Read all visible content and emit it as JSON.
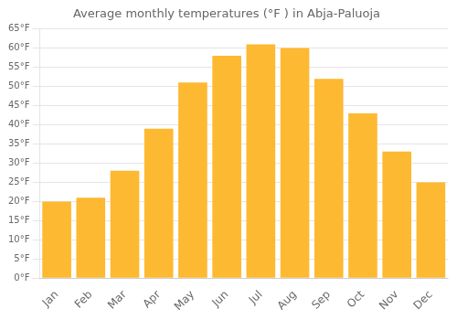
{
  "chart_data": {
    "type": "bar",
    "title": "Average monthly temperatures (°F ) in Abja-Paluoja",
    "categories": [
      "Jan",
      "Feb",
      "Mar",
      "Apr",
      "May",
      "Jun",
      "Jul",
      "Aug",
      "Sep",
      "Oct",
      "Nov",
      "Dec"
    ],
    "values": [
      20,
      21,
      28,
      39,
      51,
      58,
      61,
      60,
      52,
      43,
      33,
      25
    ],
    "color": "#FDB931",
    "ylim": [
      0,
      65
    ],
    "yticks": [
      {
        "value": 0,
        "label": "0°F"
      },
      {
        "value": 5,
        "label": "5°F"
      },
      {
        "value": 10,
        "label": "10°F"
      },
      {
        "value": 15,
        "label": "15°F"
      },
      {
        "value": 20,
        "label": "20°F"
      },
      {
        "value": 25,
        "label": "25°F"
      },
      {
        "value": 30,
        "label": "30°F"
      },
      {
        "value": 35,
        "label": "35°F"
      },
      {
        "value": 40,
        "label": "40°F"
      },
      {
        "value": 45,
        "label": "45°F"
      },
      {
        "value": 50,
        "label": "50°F"
      },
      {
        "value": 55,
        "label": "55°F"
      },
      {
        "value": 60,
        "label": "60°F"
      },
      {
        "value": 65,
        "label": "65°F"
      }
    ],
    "grid": true
  }
}
